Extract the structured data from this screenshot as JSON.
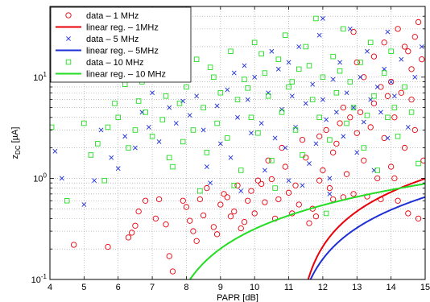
{
  "chart_data": {
    "type": "scatter",
    "xlabel": "PAPR [dB]",
    "ylabel": {
      "main": "z",
      "sub": "DC",
      "unit": " [µA]"
    },
    "xlim": [
      4,
      15
    ],
    "ylim": [
      0.1,
      50
    ],
    "yscale": "log",
    "grid": true,
    "legend_position": "top-left",
    "xticks": [
      4,
      5,
      6,
      7,
      8,
      9,
      10,
      11,
      12,
      13,
      14,
      15
    ],
    "yticks": [
      {
        "value": 0.1,
        "base": "10",
        "exp": "-1"
      },
      {
        "value": 1,
        "base": "10",
        "exp": "0"
      },
      {
        "value": 10,
        "base": "10",
        "exp": "1"
      }
    ],
    "series": [
      {
        "name": "data – 1 MHz",
        "kind": "scatter",
        "marker": "circle",
        "color": "#e8000b",
        "group": "1MHz",
        "points": [
          [
            4.7,
            0.22
          ],
          [
            5.7,
            0.21
          ],
          [
            6.3,
            0.26
          ],
          [
            6.4,
            0.29
          ],
          [
            6.5,
            0.34
          ],
          [
            6.6,
            0.47
          ],
          [
            6.8,
            0.6
          ],
          [
            7.1,
            0.4
          ],
          [
            7.2,
            0.62
          ],
          [
            7.4,
            0.35
          ],
          [
            7.5,
            0.17
          ],
          [
            7.6,
            0.12
          ],
          [
            7.9,
            0.6
          ],
          [
            8.0,
            0.52
          ],
          [
            8.1,
            0.38
          ],
          [
            8.2,
            0.3
          ],
          [
            8.3,
            0.24
          ],
          [
            8.4,
            0.62
          ],
          [
            8.5,
            0.43
          ],
          [
            8.6,
            0.8
          ],
          [
            8.8,
            0.33
          ],
          [
            8.9,
            0.28
          ],
          [
            9.0,
            0.55
          ],
          [
            9.1,
            0.7
          ],
          [
            9.2,
            0.65
          ],
          [
            9.3,
            0.42
          ],
          [
            9.4,
            0.47
          ],
          [
            9.5,
            0.85
          ],
          [
            9.6,
            0.32
          ],
          [
            9.7,
            0.37
          ],
          [
            9.8,
            0.6
          ],
          [
            9.9,
            0.75
          ],
          [
            10.0,
            0.45
          ],
          [
            10.1,
            0.95
          ],
          [
            10.2,
            0.88
          ],
          [
            10.3,
            0.58
          ],
          [
            10.4,
            1.5
          ],
          [
            10.5,
            0.98
          ],
          [
            10.6,
            0.4
          ],
          [
            10.7,
            0.62
          ],
          [
            10.8,
            2.0
          ],
          [
            10.9,
            1.3
          ],
          [
            11.0,
            0.72
          ],
          [
            11.1,
            0.45
          ],
          [
            11.2,
            0.85
          ],
          [
            11.3,
            0.55
          ],
          [
            11.4,
            2.4
          ],
          [
            11.5,
            1.6
          ],
          [
            11.6,
            0.36
          ],
          [
            11.7,
            0.5
          ],
          [
            11.8,
            0.42
          ],
          [
            11.9,
            2.6
          ],
          [
            12.0,
            1.2
          ],
          [
            12.1,
            3.0
          ],
          [
            12.2,
            0.8
          ],
          [
            12.3,
            0.62
          ],
          [
            12.4,
            2.2
          ],
          [
            12.5,
            3.5
          ],
          [
            12.6,
            0.65
          ],
          [
            12.7,
            1.1
          ],
          [
            12.8,
            4.0
          ],
          [
            12.9,
            0.7
          ],
          [
            13.0,
            2.8
          ],
          [
            13.1,
            4.5
          ],
          [
            13.2,
            1.5
          ],
          [
            13.3,
            0.66
          ],
          [
            13.4,
            3.2
          ],
          [
            13.5,
            5.5
          ],
          [
            13.6,
            1.0
          ],
          [
            13.7,
            0.62
          ],
          [
            13.8,
            2.5
          ],
          [
            13.9,
            6.5
          ],
          [
            14.0,
            1.3
          ],
          [
            14.1,
            4.0
          ],
          [
            14.2,
            0.6
          ],
          [
            14.3,
            7.0
          ],
          [
            14.4,
            2.0
          ],
          [
            14.5,
            0.45
          ],
          [
            14.6,
            12.0
          ],
          [
            14.7,
            3.0
          ],
          [
            14.8,
            0.4
          ],
          [
            14.9,
            15.0
          ],
          [
            14.95,
            1.5
          ],
          [
            14.7,
            25.0
          ],
          [
            14.5,
            18.0
          ],
          [
            14.2,
            30.0
          ],
          [
            13.8,
            22.0
          ],
          [
            13.5,
            16.0
          ],
          [
            12.9,
            28.0
          ],
          [
            13.2,
            10.0
          ],
          [
            14.0,
            9.0
          ],
          [
            14.4,
            20.0
          ],
          [
            14.8,
            35.0
          ],
          [
            13.0,
            14.0
          ],
          [
            12.3,
            1.8
          ],
          [
            12.6,
            5.0
          ],
          [
            11.9,
            0.95
          ],
          [
            13.7,
            8.0
          ],
          [
            14.1,
            1.0
          ],
          [
            14.6,
            6.0
          ]
        ]
      },
      {
        "name": "linear reg. – 1MHz",
        "kind": "fit",
        "color": "#e8000b",
        "group": "1MHz",
        "a": -2.9085,
        "b": 0.26
      },
      {
        "name": "data – 5 MHz",
        "kind": "scatter",
        "marker": "x",
        "color": "#1f2fd6",
        "group": "5MHz",
        "points": [
          [
            4.15,
            1.85
          ],
          [
            4.35,
            1.0
          ],
          [
            5.0,
            0.55
          ],
          [
            5.3,
            0.95
          ],
          [
            5.5,
            3.0
          ],
          [
            5.8,
            1.6
          ],
          [
            6.0,
            1.25
          ],
          [
            6.2,
            2.6
          ],
          [
            6.5,
            2.0
          ],
          [
            6.7,
            4.5
          ],
          [
            6.9,
            3.2
          ],
          [
            7.0,
            7.0
          ],
          [
            7.2,
            2.3
          ],
          [
            7.5,
            5.0
          ],
          [
            7.7,
            3.5
          ],
          [
            7.9,
            5.8
          ],
          [
            8.1,
            4.2
          ],
          [
            8.3,
            6.5
          ],
          [
            8.5,
            3.0
          ],
          [
            8.6,
            1.3
          ],
          [
            8.7,
            0.9
          ],
          [
            8.9,
            5.2
          ],
          [
            9.0,
            2.2
          ],
          [
            9.2,
            7.5
          ],
          [
            9.3,
            1.6
          ],
          [
            9.5,
            4.0
          ],
          [
            9.6,
            0.75
          ],
          [
            9.8,
            6.0
          ],
          [
            9.9,
            2.8
          ],
          [
            10.0,
            10.0
          ],
          [
            10.2,
            3.5
          ],
          [
            10.3,
            1.2
          ],
          [
            10.4,
            7.0
          ],
          [
            10.6,
            2.5
          ],
          [
            10.7,
            12.0
          ],
          [
            10.8,
            4.8
          ],
          [
            11.0,
            0.95
          ],
          [
            11.1,
            6.5
          ],
          [
            11.2,
            3.2
          ],
          [
            11.3,
            20.0
          ],
          [
            11.5,
            5.5
          ],
          [
            11.6,
            1.4
          ],
          [
            11.7,
            8.5
          ],
          [
            11.8,
            2.2
          ],
          [
            11.9,
            26.0
          ],
          [
            12.0,
            6.0
          ],
          [
            12.1,
            3.8
          ],
          [
            12.2,
            1.0
          ],
          [
            12.3,
            9.5
          ],
          [
            12.4,
            4.5
          ],
          [
            12.5,
            14.0
          ],
          [
            12.6,
            2.6
          ],
          [
            12.7,
            7.0
          ],
          [
            12.8,
            30.0
          ],
          [
            12.9,
            5.0
          ],
          [
            13.0,
            1.8
          ],
          [
            13.1,
            10.0
          ],
          [
            13.2,
            3.6
          ],
          [
            13.3,
            18.0
          ],
          [
            13.4,
            6.0
          ],
          [
            13.5,
            1.2
          ],
          [
            13.6,
            8.0
          ],
          [
            13.7,
            4.5
          ],
          [
            13.8,
            12.0
          ],
          [
            13.9,
            2.5
          ],
          [
            14.0,
            9.0
          ],
          [
            14.1,
            6.5
          ],
          [
            14.3,
            15.0
          ],
          [
            14.5,
            3.2
          ],
          [
            14.7,
            10.0
          ],
          [
            14.9,
            20.0
          ],
          [
            12.0,
            38.0
          ],
          [
            11.0,
            14.0
          ],
          [
            10.5,
            18.0
          ],
          [
            9.7,
            13.0
          ],
          [
            13.9,
            28.0
          ],
          [
            12.2,
            0.7
          ],
          [
            10.9,
            2.0
          ],
          [
            11.4,
            0.85
          ],
          [
            9.4,
            11.0
          ]
        ]
      },
      {
        "name": "linear reg. – 5MHz",
        "kind": "fit",
        "color": "#1f2fd6",
        "group": "5MHz",
        "a": -1.8136,
        "b": 0.1644
      },
      {
        "name": "data – 10 MHz",
        "kind": "scatter",
        "marker": "square",
        "color": "#22dd22",
        "group": "10MHz",
        "points": [
          [
            4.05,
            3.2
          ],
          [
            4.5,
            0.6
          ],
          [
            5.0,
            3.5
          ],
          [
            5.2,
            1.7
          ],
          [
            5.4,
            2.2
          ],
          [
            5.6,
            0.95
          ],
          [
            5.7,
            3.2
          ],
          [
            5.9,
            5.5
          ],
          [
            6.0,
            4.0
          ],
          [
            6.2,
            8.5
          ],
          [
            6.3,
            2.0
          ],
          [
            6.5,
            3.0
          ],
          [
            6.7,
            9.0
          ],
          [
            6.8,
            4.5
          ],
          [
            7.0,
            2.6
          ],
          [
            7.1,
            12.0
          ],
          [
            7.3,
            3.8
          ],
          [
            7.5,
            1.6
          ],
          [
            7.6,
            1.3
          ],
          [
            7.8,
            5.5
          ],
          [
            7.9,
            2.3
          ],
          [
            8.0,
            8.0
          ],
          [
            8.2,
            3.0
          ],
          [
            8.3,
            15.0
          ],
          [
            8.5,
            5.0
          ],
          [
            8.6,
            1.8
          ],
          [
            8.8,
            10.0
          ],
          [
            8.9,
            3.5
          ],
          [
            9.0,
            7.0
          ],
          [
            9.2,
            2.5
          ],
          [
            9.3,
            18.0
          ],
          [
            9.5,
            6.0
          ],
          [
            9.6,
            1.2
          ],
          [
            9.7,
            9.5
          ],
          [
            9.9,
            4.0
          ],
          [
            10.0,
            22.0
          ],
          [
            10.1,
            2.8
          ],
          [
            10.3,
            11.0
          ],
          [
            10.4,
            6.5
          ],
          [
            10.5,
            1.5
          ],
          [
            10.7,
            15.0
          ],
          [
            10.8,
            4.5
          ],
          [
            10.9,
            26.0
          ],
          [
            11.0,
            8.0
          ],
          [
            11.2,
            3.0
          ],
          [
            11.3,
            12.0
          ],
          [
            11.4,
            1.7
          ],
          [
            11.5,
            20.0
          ],
          [
            11.7,
            6.0
          ],
          [
            11.8,
            38.0
          ],
          [
            11.9,
            4.0
          ],
          [
            12.0,
            10.0
          ],
          [
            12.2,
            2.4
          ],
          [
            12.3,
            16.0
          ],
          [
            12.4,
            7.0
          ],
          [
            12.6,
            30.0
          ],
          [
            12.7,
            3.5
          ],
          [
            12.8,
            9.0
          ],
          [
            12.9,
            5.0
          ],
          [
            13.1,
            14.0
          ],
          [
            13.2,
            2.0
          ],
          [
            13.4,
            22.0
          ],
          [
            13.5,
            6.5
          ],
          [
            13.6,
            1.2
          ],
          [
            13.8,
            11.0
          ],
          [
            13.9,
            4.0
          ],
          [
            14.0,
            18.0
          ],
          [
            14.2,
            2.6
          ],
          [
            14.4,
            8.0
          ],
          [
            14.6,
            4.5
          ],
          [
            14.8,
            1.4
          ],
          [
            9.4,
            0.85
          ],
          [
            8.4,
            0.75
          ],
          [
            10.6,
            0.8
          ],
          [
            12.1,
            0.45
          ],
          [
            11.6,
            13.0
          ],
          [
            10.2,
            17.0
          ],
          [
            7.4,
            6.5
          ],
          [
            6.6,
            5.8
          ],
          [
            13.3,
            4.2
          ],
          [
            14.1,
            5.0
          ],
          [
            12.5,
            11.5
          ],
          [
            11.1,
            9.0
          ],
          [
            8.7,
            12.5
          ],
          [
            9.8,
            7.8
          ]
        ]
      },
      {
        "name": "linear reg. – 10 MHz",
        "kind": "fit",
        "color": "#22dd22",
        "group": "10MHz",
        "a": -0.8209,
        "b": 0.1136
      }
    ]
  }
}
